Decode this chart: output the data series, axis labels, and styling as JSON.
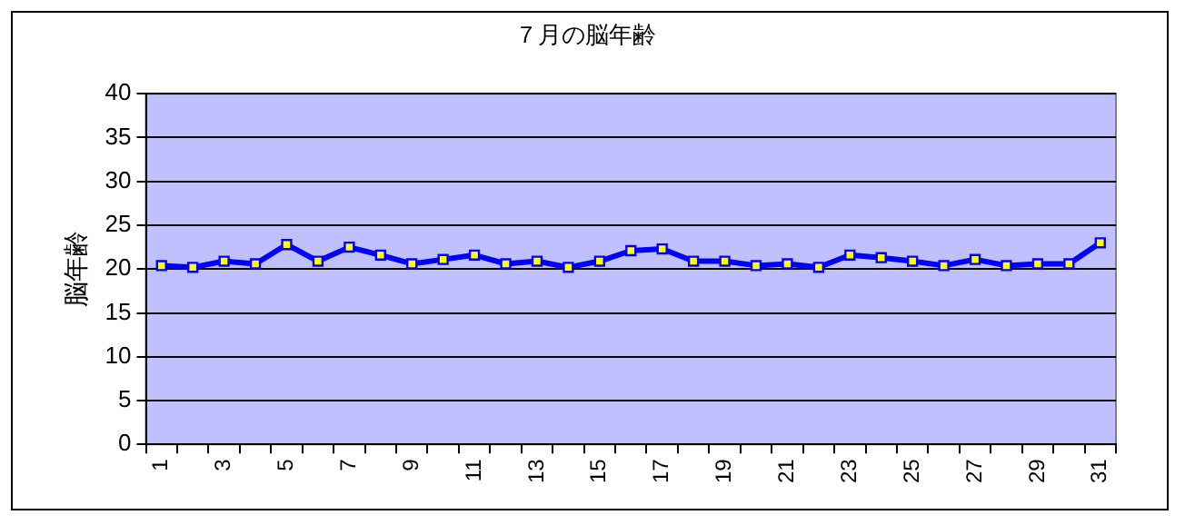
{
  "chart_data": {
    "type": "line",
    "title": "７月の脳年齢",
    "ylabel": "脳年齢",
    "categories": [
      "1",
      null,
      "3",
      null,
      "5",
      null,
      "7",
      null,
      "9",
      null,
      "11",
      null,
      "13",
      null,
      "15",
      null,
      "17",
      null,
      "19",
      null,
      "21",
      null,
      "23",
      null,
      "25",
      null,
      "27",
      null,
      "29",
      null,
      "31"
    ],
    "series": [
      {
        "color": "#0000ff",
        "values": [
          20.4,
          20.2,
          20.9,
          20.6,
          22.8,
          20.9,
          22.5,
          21.6,
          20.6,
          21.1,
          21.6,
          20.6,
          20.9,
          20.2,
          20.9,
          22.1,
          22.3,
          20.9,
          20.9,
          20.4,
          20.6,
          20.2,
          21.6,
          21.3,
          20.9,
          20.4,
          21.1,
          20.4,
          20.6,
          20.6,
          23.0
        ]
      }
    ],
    "ylim": [
      0,
      40
    ],
    "yticks": [
      0,
      5,
      10,
      15,
      20,
      25,
      30,
      35,
      40
    ],
    "grid": "y",
    "legend": false,
    "marker": "square",
    "line_style": "solid"
  }
}
